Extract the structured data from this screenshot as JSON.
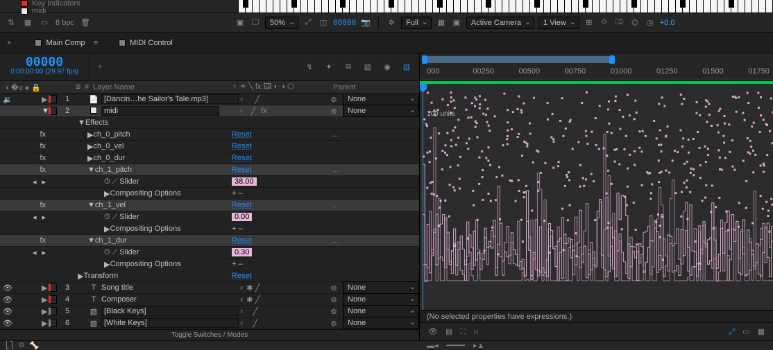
{
  "palette": {
    "bg": "#1e1e1e",
    "panel": "#232323",
    "panel2": "#2a2a2a",
    "text": "#b8b8b8",
    "muted": "#7a7a7a",
    "accent": "#1f8fff",
    "link": "#1f8fff",
    "green": "#00c853",
    "pink": "#e9b5dd",
    "selrow": "#3a3a3a",
    "border": "#0d0d0d",
    "swatch_red": "#e03131",
    "swatch_white": "#e8e8e8",
    "swatch_tan": "#8a8076"
  },
  "header_items": {
    "key_indicators": "Key Indicators",
    "midi": "midi"
  },
  "toolbar": {
    "bpc": "8 bpc",
    "zoom": "50%",
    "timecode": "00000",
    "res": "Full",
    "camera": "Active Camera",
    "view": "1 View",
    "exposure": "+0.0"
  },
  "tabs": {
    "main": "Main Comp",
    "midi": "MIDI Control"
  },
  "counter": {
    "big": "00000",
    "sub": "0:00:00:00 (29.97 fps)"
  },
  "search_placeholder": "",
  "col_headers": {
    "num": "#",
    "layer": "Layer Name",
    "switches": "♀  ☀ ╲ fx 🖽 ◐ ◑ ⬡",
    "parent": "Parent"
  },
  "layers": [
    {
      "index": 1,
      "swatch": "#e03131",
      "icon": "file",
      "name": "[Dancin…he Sailor's Tale.mp3]",
      "boxed": true,
      "selected": false,
      "parent": "None",
      "eye": true
    },
    {
      "index": 2,
      "swatch": "#e8e8e8",
      "icon": "square",
      "name": "midi",
      "boxed": true,
      "selected": true,
      "parent": "None",
      "eye": false,
      "hasfx": true
    }
  ],
  "effects_label": "Effects",
  "props_ch0": [
    {
      "name": "ch_0_pitch",
      "reset": "Reset",
      "kebab": "…"
    },
    {
      "name": "ch_0_vel",
      "reset": "Reset"
    },
    {
      "name": "ch_0_dur",
      "reset": "Reset"
    }
  ],
  "ch1_pitch": {
    "name": "ch_1_pitch",
    "reset": "Reset",
    "kebab": "…",
    "slider_label": "Slider",
    "slider_val": "38.00",
    "comp_opts": "Compositing Options",
    "pm": "+ –"
  },
  "ch1_vel": {
    "name": "ch_1_vel",
    "reset": "Reset",
    "kebab": "…",
    "slider_label": "Slider",
    "slider_val": "0.00",
    "comp_opts": "Compositing Options",
    "pm": "+ –"
  },
  "ch1_dur": {
    "name": "ch_1_dur",
    "reset": "Reset",
    "kebab": "…",
    "slider_label": "Slider",
    "slider_val": "0.30",
    "comp_opts": "Compositing Options",
    "pm": "+ –"
  },
  "transform": {
    "label": "Transform",
    "reset": "Reset"
  },
  "layers_tail": [
    {
      "index": 3,
      "swatch": "#e03131",
      "icon": "T",
      "name": "Song title",
      "parent": "None"
    },
    {
      "index": 4,
      "swatch": "#e03131",
      "icon": "T",
      "name": "Composer",
      "parent": "None"
    },
    {
      "index": 5,
      "swatch": "#8a8076",
      "icon": "comp",
      "name": "[Black Keys]",
      "boxed": true,
      "parent": "None"
    },
    {
      "index": 6,
      "swatch": "#8a8076",
      "icon": "comp",
      "name": "[White Keys]",
      "boxed": true,
      "parent": "None"
    }
  ],
  "toggle_label": "Toggle Switches / Modes",
  "ruler_ticks": [
    "000",
    "00250",
    "00500",
    "00750",
    "01000",
    "01250",
    "01500",
    "01750"
  ],
  "ruler_positions_pct": [
    2,
    15,
    28,
    41,
    54,
    67,
    80,
    93
  ],
  "units_label": "100 units",
  "no_expr": "(No selected properties have expressions.)",
  "graph": {
    "line_color": "#e9b5dd",
    "marker_color": "#e9b5dd",
    "bg": "#2c2c2c",
    "num_series": 3,
    "approx_vrange": [
      0,
      130
    ],
    "dense_lines": 160
  }
}
